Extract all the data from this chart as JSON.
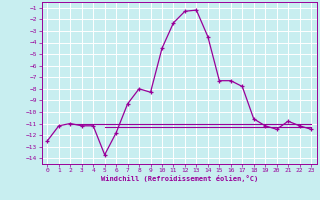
{
  "xlabel": "Windchill (Refroidissement éolien,°C)",
  "bg_color": "#c8eef0",
  "grid_color": "#ffffff",
  "line_color": "#990099",
  "xlim": [
    -0.5,
    23.5
  ],
  "ylim": [
    -14.5,
    -0.5
  ],
  "xticks": [
    0,
    1,
    2,
    3,
    4,
    5,
    6,
    7,
    8,
    9,
    10,
    11,
    12,
    13,
    14,
    15,
    16,
    17,
    18,
    19,
    20,
    21,
    22,
    23
  ],
  "yticks": [
    -1,
    -2,
    -3,
    -4,
    -5,
    -6,
    -7,
    -8,
    -9,
    -10,
    -11,
    -12,
    -13,
    -14
  ],
  "main_x": [
    0,
    1,
    2,
    3,
    4,
    5,
    6,
    7,
    8,
    9,
    10,
    11,
    12,
    13,
    14,
    15,
    16,
    17,
    18,
    19,
    20,
    21,
    22,
    23
  ],
  "main_y": [
    -12.5,
    -11.2,
    -11.0,
    -11.2,
    -11.2,
    -13.7,
    -11.8,
    -9.3,
    -8.0,
    -8.3,
    -4.5,
    -2.3,
    -1.3,
    -1.2,
    -3.5,
    -7.3,
    -7.3,
    -7.8,
    -10.6,
    -11.2,
    -11.5,
    -10.8,
    -11.2,
    -11.5
  ],
  "flat1_x": [
    2,
    3,
    4,
    5,
    6,
    7,
    8,
    9,
    10,
    11,
    12,
    13,
    14,
    15,
    16,
    17,
    18,
    19,
    20,
    21,
    22,
    23
  ],
  "flat1_y": [
    -11.0,
    -11.0,
    -11.0,
    -11.0,
    -11.0,
    -11.0,
    -11.0,
    -11.0,
    -11.0,
    -11.0,
    -11.0,
    -11.0,
    -11.0,
    -11.0,
    -11.0,
    -11.0,
    -11.0,
    -11.0,
    -11.0,
    -11.0,
    -11.0,
    -11.0
  ],
  "flat2_x": [
    5,
    6,
    7,
    8,
    9,
    10,
    11,
    12,
    13,
    14,
    15,
    16,
    17,
    18,
    19,
    20,
    21,
    22,
    23
  ],
  "flat2_y": [
    -11.3,
    -11.3,
    -11.3,
    -11.3,
    -11.3,
    -11.3,
    -11.3,
    -11.3,
    -11.3,
    -11.3,
    -11.3,
    -11.3,
    -11.3,
    -11.3,
    -11.3,
    -11.3,
    -11.3,
    -11.3,
    -11.3
  ]
}
